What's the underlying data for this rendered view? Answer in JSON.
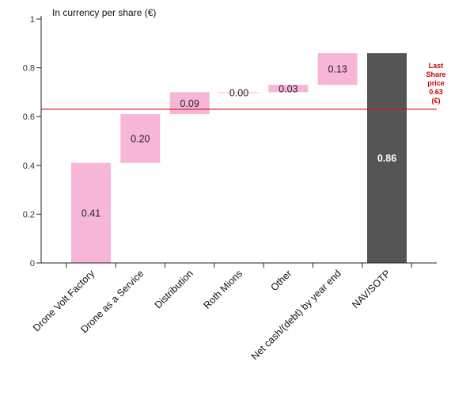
{
  "chart_data": {
    "type": "bar",
    "subtype": "waterfall",
    "unit_label": "In currency per share (€)",
    "categories": [
      "Drone Volt Factory",
      "Drone as a Service",
      "Distribution",
      "Roth Mions",
      "Other",
      "Net cash/(debt) by year end",
      "NAV/SOTP"
    ],
    "values": [
      0.41,
      0.2,
      0.09,
      0.0,
      0.03,
      0.13,
      0.86
    ],
    "value_labels": [
      "0.41",
      "0.20",
      "0.09",
      "0.00",
      "0.03",
      "0.13",
      "0.86"
    ],
    "total_index": 6,
    "ylim": [
      0,
      1
    ],
    "yticks": [
      0,
      0.2,
      0.4,
      0.6,
      0.8,
      1
    ],
    "ytick_labels": [
      "0",
      "0.2",
      "0.4",
      "0.6",
      "0.8",
      "1"
    ],
    "reference_line": {
      "value": 0.63,
      "label_lines": [
        "Last",
        "Share",
        "price",
        "0.63",
        "(€)"
      ]
    },
    "colors": {
      "increment": "#f7b6d8",
      "total": "#555555",
      "reference": "#dd1111",
      "axis": "#222222"
    },
    "grid": false,
    "legend": "none"
  }
}
